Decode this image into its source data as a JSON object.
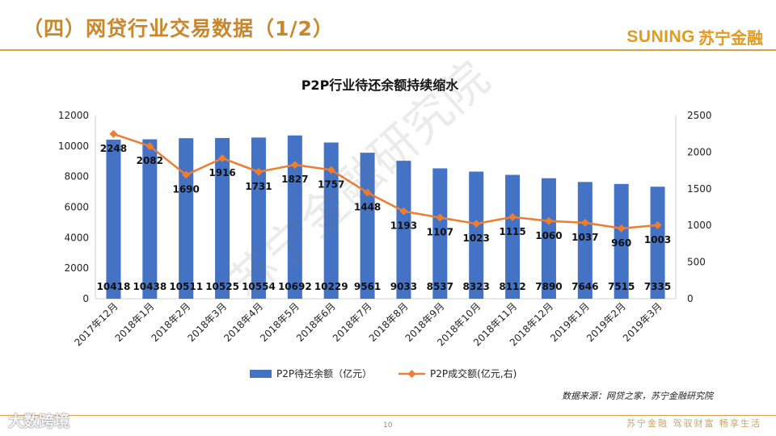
{
  "header": {
    "title": "（四）网贷行业交易数据（1/2）"
  },
  "logo": {
    "en": "SUNING",
    "cn": "苏宁金融"
  },
  "source": "数据来源：网贷之家，苏宁金融研究院",
  "watermark": "苏宁金融研究院",
  "footer": {
    "page": "10",
    "slogan": "苏宁金融  驾驭财富  畅享生活",
    "corner": "大数跨境"
  },
  "colors": {
    "bar": "#4472c4",
    "line": "#ed7d31",
    "accent": "#c9862a"
  },
  "chart_data": {
    "type": "bar",
    "title": "P2P行业待还余额持续缩水",
    "categories": [
      "2017年12月",
      "2018年1月",
      "2018年2月",
      "2018年3月",
      "2018年4月",
      "2018年5月",
      "2018年6月",
      "2018年7月",
      "2018年8月",
      "2018年9月",
      "2018年10月",
      "2018年11月",
      "2018年12月",
      "2019年1月",
      "2019年2月",
      "2019年3月"
    ],
    "series": [
      {
        "name": "P2P待还余额（亿元）",
        "type": "bar",
        "axis": "left",
        "values": [
          10418,
          10438,
          10511,
          10525,
          10554,
          10692,
          10229,
          9561,
          9033,
          8537,
          8323,
          8112,
          7890,
          7646,
          7515,
          7335
        ]
      },
      {
        "name": "P2P成交额(亿元,右)",
        "type": "line",
        "axis": "right",
        "values": [
          2248,
          2082,
          1690,
          1916,
          1731,
          1827,
          1757,
          1448,
          1193,
          1107,
          1023,
          1115,
          1060,
          1037,
          960,
          1003
        ]
      }
    ],
    "ylim": [
      0,
      12000
    ],
    "y2lim": [
      0,
      2500
    ],
    "yticks": [
      0,
      2000,
      4000,
      6000,
      8000,
      10000,
      12000
    ],
    "y2ticks": [
      0,
      500,
      1000,
      1500,
      2000,
      2500
    ],
    "grid": false,
    "legend": "bottom"
  }
}
